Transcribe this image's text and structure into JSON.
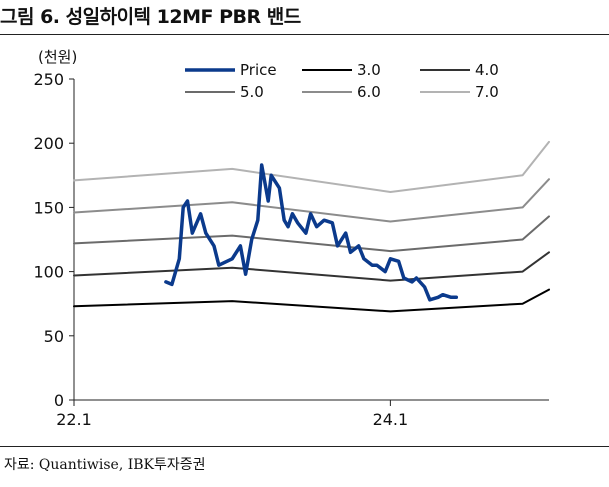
{
  "figure": {
    "title": "그림 6. 성일하이텍 12MF PBR 밴드",
    "source": "자료: Quantiwise, IBK투자증권"
  },
  "chart_data": {
    "type": "line",
    "unit_label": "(천원)",
    "ylim": [
      0,
      250
    ],
    "yticks": [
      0,
      50,
      100,
      150,
      200,
      250
    ],
    "xlim": [
      "2022-01",
      "2025-01"
    ],
    "xtick_labels": [
      "22.1",
      "24.1"
    ],
    "grid": false,
    "legend_placement": "top",
    "series": [
      {
        "name": "Price",
        "color": "#0b3a8c",
        "width": 3.5,
        "x": [
          "2022-08",
          "2022-08-15",
          "2022-09",
          "2022-09-10",
          "2022-09-20",
          "2022-10",
          "2022-10-20",
          "2022-11",
          "2022-11-20",
          "2022-12",
          "2023-01",
          "2023-01-20",
          "2023-02",
          "2023-02-15",
          "2023-03",
          "2023-03-10",
          "2023-03-25",
          "2023-04",
          "2023-04-20",
          "2023-05",
          "2023-05-10",
          "2023-05-20",
          "2023-06",
          "2023-06-20",
          "2023-07",
          "2023-07-15",
          "2023-08",
          "2023-08-20",
          "2023-09",
          "2023-09-20",
          "2023-10",
          "2023-10-20",
          "2023-11",
          "2023-11-20",
          "2023-12",
          "2023-12-20",
          "2024-01",
          "2024-01-20",
          "2024-02",
          "2024-02-20",
          "2024-03",
          "2024-03-20",
          "2024-04",
          "2024-04-20",
          "2024-05",
          "2024-05-20",
          "2024-06"
        ],
        "y": [
          92,
          90,
          110,
          150,
          155,
          130,
          145,
          130,
          120,
          105,
          110,
          120,
          98,
          125,
          140,
          183,
          155,
          175,
          165,
          140,
          135,
          145,
          138,
          130,
          145,
          135,
          140,
          138,
          120,
          130,
          115,
          120,
          110,
          105,
          105,
          100,
          110,
          108,
          95,
          92,
          95,
          88,
          78,
          80,
          82,
          80,
          80
        ]
      },
      {
        "name": "3.0",
        "color": "#000000",
        "width": 2,
        "x": [
          "2022-01",
          "2023-01",
          "2024-01",
          "2024-11",
          "2025-01"
        ],
        "y": [
          73,
          77,
          69,
          75,
          86
        ]
      },
      {
        "name": "4.0",
        "color": "#333333",
        "width": 2,
        "x": [
          "2022-01",
          "2023-01",
          "2024-01",
          "2024-11",
          "2025-01"
        ],
        "y": [
          97,
          103,
          93,
          100,
          115
        ]
      },
      {
        "name": "5.0",
        "color": "#6b6b6b",
        "width": 2,
        "x": [
          "2022-01",
          "2023-01",
          "2024-01",
          "2024-11",
          "2025-01"
        ],
        "y": [
          122,
          128,
          116,
          125,
          143
        ]
      },
      {
        "name": "6.0",
        "color": "#8c8c8c",
        "width": 2,
        "x": [
          "2022-01",
          "2023-01",
          "2024-01",
          "2024-11",
          "2025-01"
        ],
        "y": [
          146,
          154,
          139,
          150,
          172
        ]
      },
      {
        "name": "7.0",
        "color": "#b3b3b3",
        "width": 2,
        "x": [
          "2022-01",
          "2023-01",
          "2024-01",
          "2024-11",
          "2025-01"
        ],
        "y": [
          171,
          180,
          162,
          175,
          201
        ]
      }
    ]
  }
}
